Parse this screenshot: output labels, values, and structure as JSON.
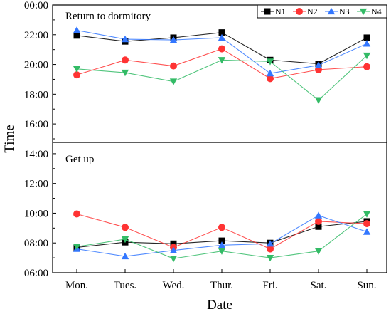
{
  "chart_data": {
    "type": "line",
    "xlabel": "Date",
    "ylabel": "Time",
    "categories": [
      "Mon.",
      "Tues.",
      "Wed.",
      "Thur.",
      "Fri.",
      "Sat.",
      "Sun."
    ],
    "ylim": [
      6,
      24
    ],
    "yticks": [
      "00:00",
      "22:00",
      "20:00",
      "18:00",
      "16:00",
      "14:00",
      "12:00",
      "10:00",
      "08:00",
      "06:00"
    ],
    "panels": [
      {
        "label": "Return to dormitory",
        "range": [
          15,
          24
        ]
      },
      {
        "label": "Get up",
        "range": [
          6,
          15
        ]
      }
    ],
    "legend": {
      "position": "top-right"
    },
    "series": [
      {
        "name": "N1",
        "color": "#000000",
        "marker": "square",
        "values": [
          21.95,
          21.55,
          21.8,
          22.15,
          20.3,
          20.05,
          21.8
        ],
        "values_getup": [
          7.7,
          8.05,
          7.95,
          8.15,
          8.0,
          9.1,
          9.45
        ]
      },
      {
        "name": "N2",
        "color": "#ff3333",
        "marker": "circle",
        "values": [
          19.3,
          20.3,
          19.9,
          21.05,
          19.05,
          19.65,
          19.85
        ],
        "values_getup": [
          9.95,
          9.05,
          7.7,
          9.05,
          7.6,
          9.45,
          9.3
        ]
      },
      {
        "name": "N3",
        "color": "#3377ff",
        "marker": "triangle-up",
        "values": [
          22.3,
          21.7,
          21.65,
          21.8,
          19.4,
          19.95,
          21.4
        ],
        "values_getup": [
          7.6,
          7.1,
          7.5,
          7.85,
          7.95,
          9.85,
          8.75
        ]
      },
      {
        "name": "N4",
        "color": "#33bb66",
        "marker": "triangle-down",
        "values": [
          19.7,
          19.45,
          18.85,
          20.3,
          20.2,
          17.6,
          20.6
        ],
        "values_getup": [
          7.75,
          8.25,
          6.95,
          7.45,
          7.0,
          7.45,
          9.95
        ]
      }
    ]
  }
}
